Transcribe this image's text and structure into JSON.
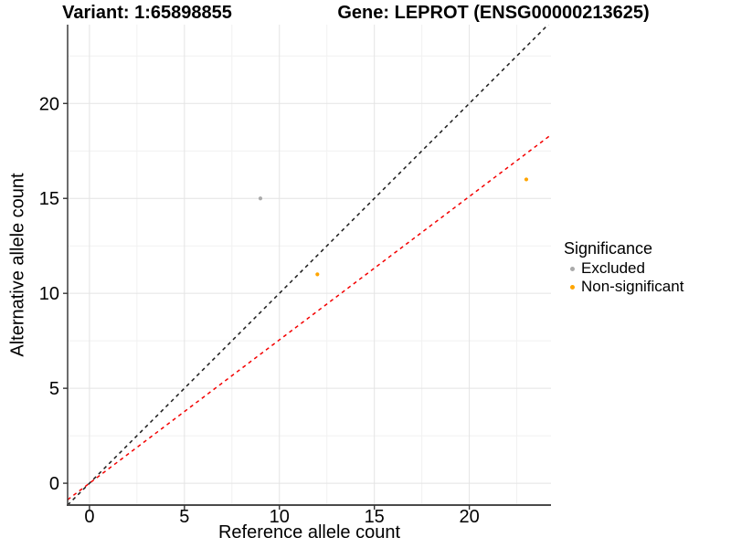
{
  "chart_data": {
    "type": "scatter",
    "titles": {
      "left": "Variant: 1:65898855",
      "right": "Gene: LEPROT (ENSG00000213625)"
    },
    "xlabel": "Reference allele count",
    "ylabel": "Alternative allele count",
    "xlim": [
      -1.15,
      24.3
    ],
    "ylim": [
      -1.15,
      24.15
    ],
    "xticks": [
      0,
      5,
      10,
      15,
      20
    ],
    "yticks": [
      0,
      5,
      10,
      15,
      20
    ],
    "xminor": [
      2.5,
      7.5,
      12.5,
      17.5,
      22.5
    ],
    "yminor": [
      2.5,
      7.5,
      12.5,
      17.5,
      22.5
    ],
    "grid": "major-and-minor, light gray on white",
    "series": [
      {
        "name": "Excluded",
        "color": "#aaaaaa",
        "points": [
          {
            "x": 9,
            "y": 15
          }
        ]
      },
      {
        "name": "Non-significant",
        "color": "#ffa500",
        "points": [
          {
            "x": 12,
            "y": 11
          },
          {
            "x": 23,
            "y": 16
          }
        ]
      }
    ],
    "ablines": [
      {
        "name": "identity-line",
        "slope": 1,
        "intercept": 0,
        "color": "#1a1a1a",
        "style": "dashed"
      },
      {
        "name": "expected-ratio-line",
        "slope": 0.755,
        "intercept": 0,
        "color": "#f40000",
        "style": "dashed"
      }
    ],
    "legend": {
      "title": "Significance",
      "position": "right"
    }
  }
}
